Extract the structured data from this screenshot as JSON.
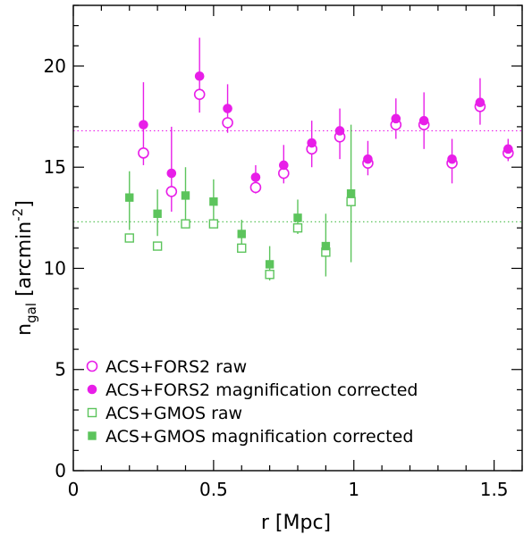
{
  "chart_data": {
    "type": "scatter",
    "xlabel": "r  [Mpc]",
    "ylabel_main": "n",
    "ylabel_sub": "gal",
    "ylabel_unit_pre": "[arcmin",
    "ylabel_unit_sup": "-2",
    "ylabel_unit_post": "]",
    "xlim": [
      0,
      1.6
    ],
    "ylim": [
      0,
      23
    ],
    "x_ticks": [
      0,
      0.5,
      1,
      1.5
    ],
    "x_tick_labels": [
      "0",
      "0.5",
      "1",
      "1.5"
    ],
    "y_ticks": [
      0,
      5,
      10,
      15,
      20
    ],
    "y_tick_labels": [
      "0",
      "5",
      "10",
      "15",
      "20"
    ],
    "grid": false,
    "legend_position": "bottom-left",
    "reference_lines": [
      {
        "y": 16.8,
        "color": "#e81ee8",
        "style": "dotted"
      },
      {
        "y": 12.3,
        "color": "#5cc45c",
        "style": "dotted"
      }
    ],
    "series": [
      {
        "name": "ACS+FORS2 raw",
        "marker": "open-circle",
        "color": "#e81ee8",
        "x": [
          0.25,
          0.35,
          0.45,
          0.55,
          0.65,
          0.75,
          0.85,
          0.95,
          1.05,
          1.15,
          1.25,
          1.35,
          1.45,
          1.55
        ],
        "y": [
          15.7,
          13.8,
          18.6,
          17.2,
          14.0,
          14.7,
          15.9,
          16.5,
          15.2,
          17.1,
          17.1,
          15.2,
          18.0,
          15.7
        ],
        "yerr": null
      },
      {
        "name": "ACS+FORS2 magnification corrected",
        "marker": "filled-circle",
        "color": "#e81ee8",
        "x": [
          0.25,
          0.35,
          0.45,
          0.55,
          0.65,
          0.75,
          0.85,
          0.95,
          1.05,
          1.15,
          1.25,
          1.35,
          1.45,
          1.55
        ],
        "y": [
          17.1,
          14.7,
          19.5,
          17.9,
          14.5,
          15.1,
          16.2,
          16.8,
          15.4,
          17.4,
          17.3,
          15.4,
          18.2,
          15.9
        ],
        "yerr_low": [
          2.0,
          1.9,
          1.8,
          1.2,
          0.8,
          0.9,
          1.2,
          1.4,
          0.8,
          1.0,
          1.4,
          1.2,
          1.1,
          0.6
        ],
        "yerr_high": [
          2.1,
          2.3,
          1.9,
          1.2,
          0.6,
          1.0,
          1.1,
          1.1,
          0.9,
          1.0,
          1.4,
          1.0,
          1.2,
          0.5
        ]
      },
      {
        "name": "ACS+GMOS raw",
        "marker": "open-square",
        "color": "#5cc45c",
        "x": [
          0.2,
          0.3,
          0.4,
          0.5,
          0.6,
          0.7,
          0.8,
          0.9,
          0.99
        ],
        "y": [
          11.5,
          11.1,
          12.2,
          12.2,
          11.0,
          9.7,
          12.0,
          10.8,
          13.3
        ],
        "yerr": null
      },
      {
        "name": "ACS+GMOS magnification corrected",
        "marker": "filled-square",
        "color": "#5cc45c",
        "x": [
          0.2,
          0.3,
          0.4,
          0.5,
          0.6,
          0.7,
          0.8,
          0.9,
          0.99
        ],
        "y": [
          13.5,
          12.7,
          13.6,
          13.3,
          11.7,
          10.2,
          12.5,
          11.1,
          13.7
        ],
        "yerr_low": [
          1.6,
          1.1,
          1.6,
          1.1,
          0.7,
          0.8,
          0.8,
          1.5,
          3.4
        ],
        "yerr_high": [
          1.3,
          1.2,
          1.4,
          1.1,
          0.7,
          0.9,
          0.9,
          1.6,
          3.4
        ]
      }
    ]
  }
}
